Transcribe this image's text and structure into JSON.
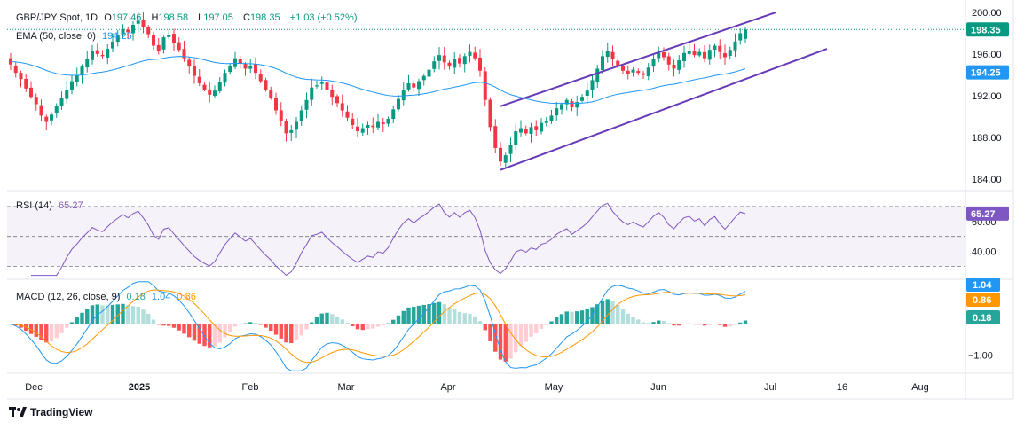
{
  "header": {
    "symbol": "GBP/JPY Spot, 1D",
    "open_label": "O",
    "open": "197.46",
    "high_label": "H",
    "high": "198.58",
    "low_label": "L",
    "low": "197.05",
    "close_label": "C",
    "close": "198.35",
    "change": "+1.03 (+0.52%)"
  },
  "ema_legend": {
    "label": "EMA (50, close, 0)",
    "value": "194.25"
  },
  "rsi_legend": {
    "label": "RSI (14)",
    "value": "65.27"
  },
  "macd_legend": {
    "label": "MACD (12, 26, close, 9)",
    "hist": "0.18",
    "macd": "1.04",
    "signal": "0.86"
  },
  "brand": "TradingView",
  "colors": {
    "up": "#089981",
    "down": "#f23645",
    "ema": "#2196f3",
    "channel": "#673ab7",
    "rsi": "#7e57c2",
    "macd": "#2196f3",
    "signal": "#ff9800",
    "hist_up_strong": "#26a69a",
    "hist_up_weak": "#b2dfdb",
    "hist_down_strong": "#ff5252",
    "hist_down_weak": "#ffcdd2"
  },
  "chart_data": {
    "type": "candlestick",
    "price_axis": {
      "ticks": [
        "200.00",
        "196.00",
        "192.00",
        "188.00",
        "184.00"
      ],
      "ylim": [
        183.0,
        200.5
      ]
    },
    "price_labels": {
      "last": "198.35",
      "ema": "194.25"
    },
    "x_tick_labels": [
      "Dec",
      "2025",
      "Feb",
      "Mar",
      "Apr",
      "May",
      "Jun",
      "Jul",
      "16",
      "Aug"
    ],
    "closes": [
      195.0,
      194.2,
      193.6,
      192.7,
      191.9,
      191.2,
      190.1,
      189.5,
      190.2,
      191.0,
      191.8,
      192.6,
      193.4,
      194.0,
      194.8,
      195.5,
      196.3,
      196.0,
      195.8,
      196.5,
      197.2,
      197.8,
      198.4,
      198.1,
      198.8,
      199.2,
      198.6,
      197.9,
      196.8,
      196.3,
      197.6,
      197.8,
      197.1,
      196.4,
      195.6,
      194.8,
      193.9,
      193.2,
      192.6,
      192.1,
      192.5,
      193.3,
      194.2,
      194.9,
      195.6,
      195.1,
      194.6,
      194.9,
      194.2,
      193.4,
      192.6,
      191.8,
      190.6,
      189.6,
      188.4,
      188.7,
      189.5,
      190.6,
      191.6,
      192.8,
      193.0,
      193.3,
      192.6,
      191.9,
      191.3,
      190.6,
      189.9,
      189.2,
      188.6,
      188.9,
      189.2,
      189.0,
      189.5,
      189.3,
      189.8,
      190.7,
      191.7,
      192.6,
      193.2,
      192.8,
      193.4,
      193.9,
      194.5,
      195.3,
      195.9,
      195.2,
      194.8,
      195.5,
      195.1,
      195.8,
      196.2,
      195.6,
      194.4,
      191.6,
      189.0,
      187.0,
      185.7,
      186.3,
      187.3,
      188.6,
      188.9,
      188.4,
      189.0,
      188.7,
      189.4,
      189.6,
      190.1,
      190.8,
      191.2,
      191.6,
      190.9,
      191.4,
      191.9,
      192.5,
      193.5,
      194.6,
      195.8,
      196.3,
      195.5,
      194.9,
      194.4,
      194.1,
      194.5,
      194.2,
      194.0,
      194.7,
      195.5,
      196.1,
      195.7,
      195.0,
      194.6,
      195.4,
      196.1,
      196.3,
      195.9,
      196.2,
      195.6,
      196.4,
      196.8,
      196.2,
      195.7,
      196.4,
      197.2,
      198.0,
      198.35
    ],
    "ema50": {
      "last": 194.25
    },
    "channel": {
      "upper": {
        "from": {
          "bar": 96,
          "price": 191.0
        },
        "to": {
          "bar": 150,
          "price": 200.0
        }
      },
      "lower": {
        "from": {
          "bar": 96,
          "price": 184.9
        },
        "to": {
          "bar": 160,
          "price": 196.5
        }
      }
    },
    "rsi": {
      "ticks": [
        "60.00",
        "40.00"
      ],
      "ylim": [
        22,
        80
      ],
      "band": [
        30,
        70
      ],
      "midline": 50,
      "last": "65.27",
      "label": "65.27"
    },
    "macd": {
      "ticks": [
        "-1.00"
      ],
      "ylim": [
        -1.55,
        1.4
      ],
      "last_macd": "1.04",
      "last_signal": "0.86",
      "last_hist": "0.18"
    }
  }
}
